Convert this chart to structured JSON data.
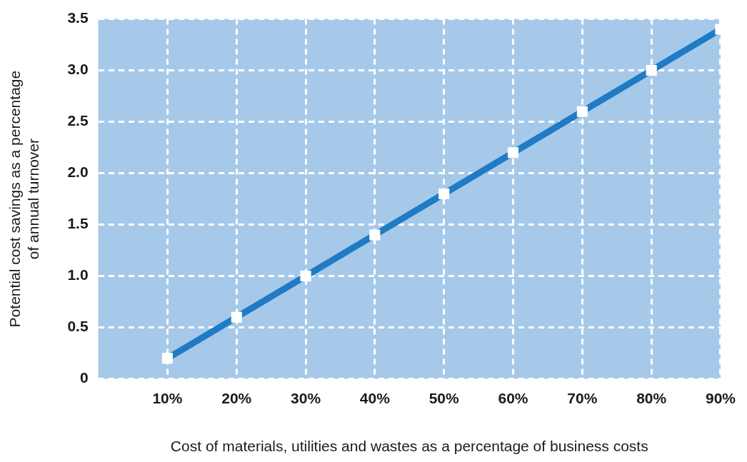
{
  "chart_data": {
    "type": "line",
    "xlabel": "Cost of materials, utilities and wastes as a percentage of business costs",
    "ylabel": "Potential cost savings as a percentage\nof annual turnover",
    "x": [
      10,
      20,
      30,
      40,
      50,
      60,
      70,
      80,
      90
    ],
    "series": [
      {
        "color": "#1f7bc4",
        "values": [
          0.2,
          0.6,
          1.0,
          1.4,
          1.8,
          2.2,
          2.6,
          3.0,
          3.4
        ]
      }
    ],
    "xlim": [
      0,
      90
    ],
    "xticks": [
      {
        "value": 10,
        "label": "10%"
      },
      {
        "value": 20,
        "label": "20%"
      },
      {
        "value": 30,
        "label": "30%"
      },
      {
        "value": 40,
        "label": "40%"
      },
      {
        "value": 50,
        "label": "50%"
      },
      {
        "value": 60,
        "label": "60%"
      },
      {
        "value": 70,
        "label": "70%"
      },
      {
        "value": 80,
        "label": "80%"
      },
      {
        "value": 90,
        "label": "90%"
      }
    ],
    "ylim": [
      0,
      3.5
    ],
    "yticks": [
      0,
      {
        "value": 0.5,
        "label": "0.5"
      },
      {
        "value": 1,
        "label": "1.0"
      },
      {
        "value": 1.5,
        "label": "1.5"
      },
      {
        "value": 2,
        "label": "2.0"
      },
      {
        "value": 2.5,
        "label": "2.5"
      },
      {
        "value": 3,
        "label": "3.0"
      },
      {
        "value": 3.5,
        "label": "3.5"
      }
    ],
    "grid": true,
    "legend": false,
    "marker": "square",
    "line_style": "solid"
  }
}
